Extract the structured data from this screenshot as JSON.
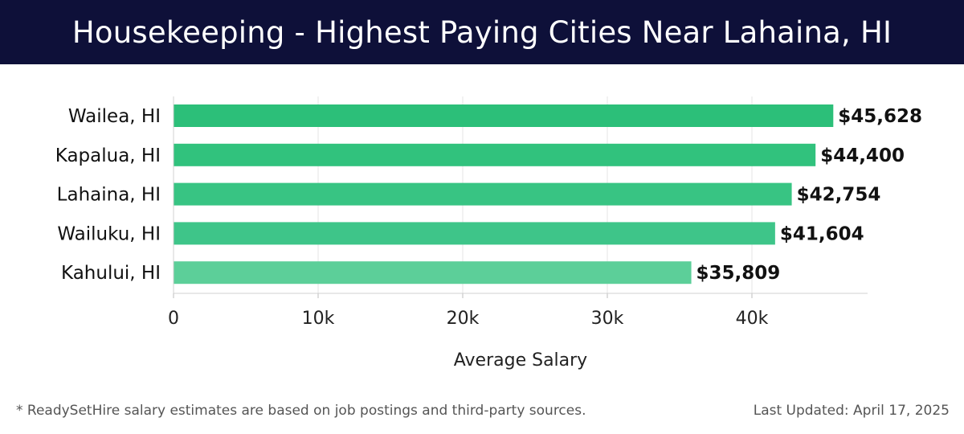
{
  "header": {
    "title": "Housekeeping - Highest Paying Cities Near Lahaina, HI"
  },
  "chart_data": {
    "type": "bar",
    "orientation": "horizontal",
    "categories": [
      "Wailea, HI",
      "Kapalua, HI",
      "Lahaina, HI",
      "Wailuku, HI",
      "Kahului, HI"
    ],
    "values": [
      45628,
      44400,
      42754,
      41604,
      35809
    ],
    "value_labels": [
      "$45,628",
      "$44,400",
      "$42,754",
      "$41,604",
      "$35,809"
    ],
    "xlabel": "Average Salary",
    "ylabel": "",
    "xlim": [
      0,
      48000
    ],
    "xticks": [
      0,
      10000,
      20000,
      30000,
      40000
    ],
    "xtick_labels": [
      "0",
      "10k",
      "20k",
      "30k",
      "40k"
    ],
    "grid": true,
    "colors": [
      "#2cbf79",
      "#31c27d",
      "#38c483",
      "#3ec589",
      "#5ccf99"
    ]
  },
  "footer": {
    "note": "* ReadySetHire salary estimates are based on job postings and third-party sources.",
    "updated": "Last Updated: April 17, 2025"
  }
}
